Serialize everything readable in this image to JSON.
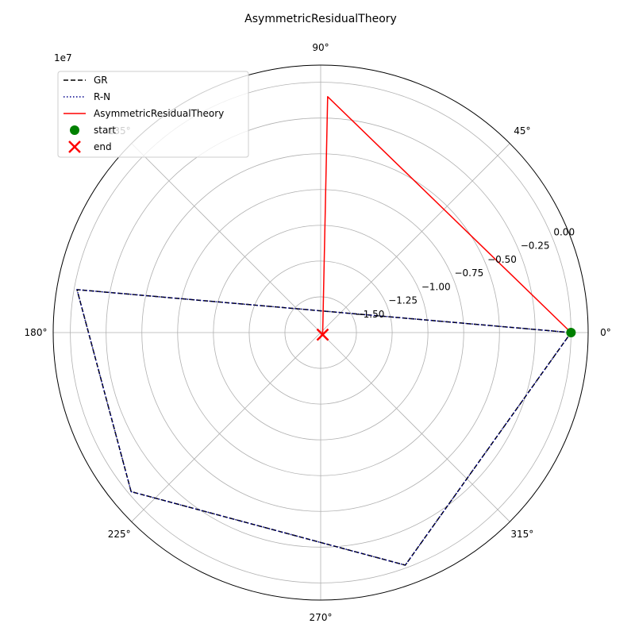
{
  "chart_data": {
    "type": "line",
    "projection": "polar",
    "title": "AsymmetricResidualTheory",
    "offset_label": "1e7",
    "radial_axis": {
      "min": -1.75,
      "max": 0.12,
      "ticks": [
        -1.5,
        -1.25,
        -1.0,
        -0.75,
        -0.5,
        -0.25,
        0.0
      ],
      "tick_labels": [
        "−1.50",
        "−1.25",
        "−1.00",
        "−0.75",
        "−0.50",
        "−0.25",
        "0.00"
      ],
      "label_angle_deg": 22.5
    },
    "angular_axis": {
      "ticks_deg": [
        0,
        45,
        90,
        135,
        180,
        225,
        270,
        315
      ],
      "tick_labels": [
        "0°",
        "45°",
        "90°",
        "135°",
        "180°",
        "225°",
        "270°",
        "315°"
      ]
    },
    "grid": true,
    "legend_position": "top-left",
    "series": [
      {
        "name": "GR",
        "color": "#000000",
        "style": "dashed",
        "points": [
          {
            "theta_deg": 0.0,
            "r": 0.0
          },
          {
            "theta_deg": 170.0,
            "r": -0.02
          },
          {
            "theta_deg": 220.0,
            "r": -0.02
          },
          {
            "theta_deg": 290.0,
            "r": -0.02
          },
          {
            "theta_deg": 360.0,
            "r": 0.0
          }
        ]
      },
      {
        "name": "R-N",
        "color": "#00008b",
        "style": "dotted",
        "points": [
          {
            "theta_deg": 0.0,
            "r": 0.0
          },
          {
            "theta_deg": 170.0,
            "r": -0.02
          },
          {
            "theta_deg": 220.0,
            "r": -0.02
          },
          {
            "theta_deg": 290.0,
            "r": -0.02
          },
          {
            "theta_deg": 360.0,
            "r": 0.0
          }
        ]
      },
      {
        "name": "AsymmetricResidualTheory",
        "color": "#ff0000",
        "style": "solid",
        "points": [
          {
            "theta_deg": 0.0,
            "r": 0.0
          },
          {
            "theta_deg": 88.3,
            "r": -0.1
          },
          {
            "theta_deg": 314.0,
            "r": -1.73
          }
        ]
      }
    ],
    "markers": [
      {
        "name": "start",
        "shape": "circle",
        "color": "#008000",
        "theta_deg": 0.0,
        "r": 0.0
      },
      {
        "name": "end",
        "shape": "x",
        "color": "#ff0000",
        "theta_deg": 314.0,
        "r": -1.73
      }
    ]
  }
}
